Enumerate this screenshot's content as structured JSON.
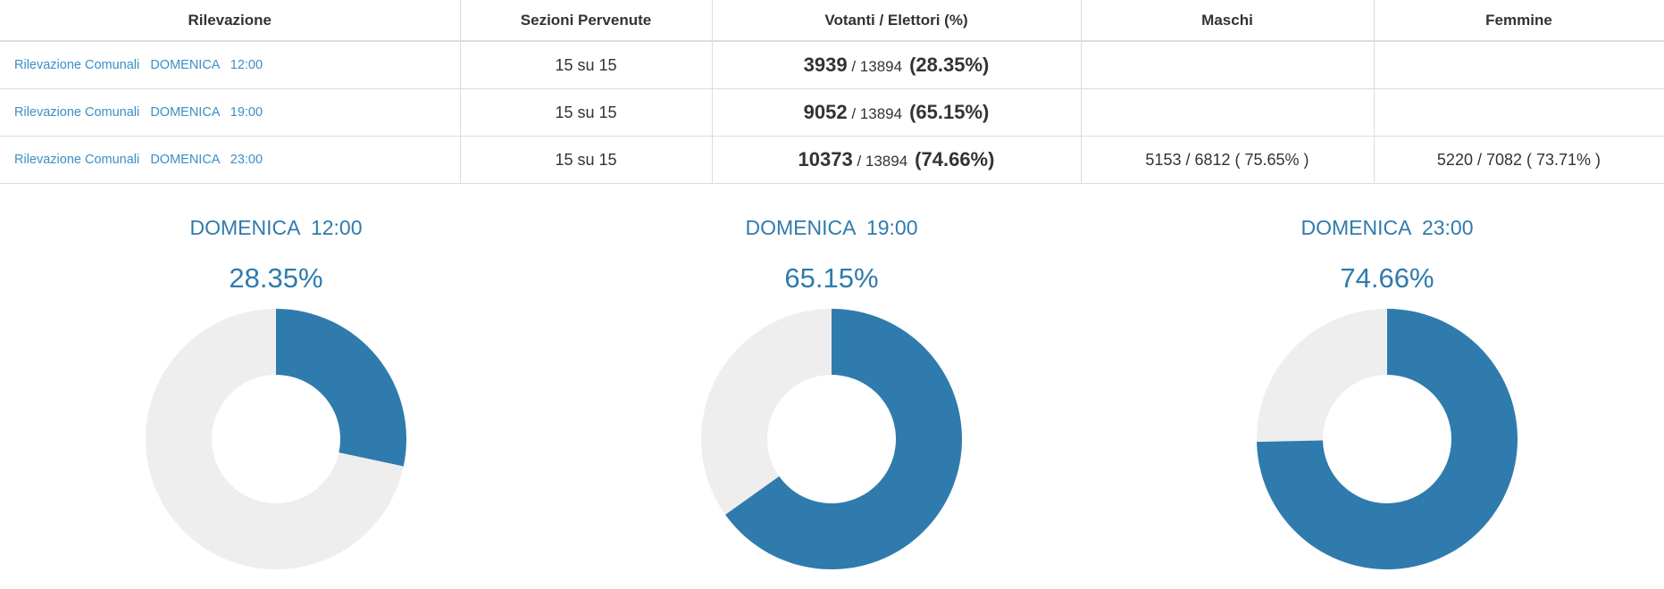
{
  "table": {
    "headers": [
      "Rilevazione",
      "Sezioni Pervenute",
      "Votanti / Elettori (%)",
      "Maschi",
      "Femmine"
    ],
    "rows": [
      {
        "rilevazione": "Rilevazione Comunali   DOMENICA   12:00",
        "sezioni": "15 su 15",
        "votanti": "3939",
        "elettori": " / 13894",
        "percentuale": "(28.35%)",
        "maschi": "",
        "femmine": ""
      },
      {
        "rilevazione": "Rilevazione Comunali   DOMENICA   19:00",
        "sezioni": "15 su 15",
        "votanti": "9052",
        "elettori": " / 13894",
        "percentuale": "(65.15%)",
        "maschi": "",
        "femmine": ""
      },
      {
        "rilevazione": "Rilevazione Comunali   DOMENICA   23:00",
        "sezioni": "15 su 15",
        "votanti": "10373",
        "elettori": " / 13894",
        "percentuale": "(74.66%)",
        "maschi": "5153 / 6812 ( 75.65% )",
        "femmine": "5220 / 7082 ( 73.71% )"
      }
    ]
  },
  "charts": [
    {
      "label": "DOMENICA  12:00",
      "percent_text": "28.35%",
      "value": 28.35
    },
    {
      "label": "DOMENICA  19:00",
      "percent_text": "65.15%",
      "value": 65.15
    },
    {
      "label": "DOMENICA  23:00",
      "percent_text": "74.66%",
      "value": 74.66
    }
  ],
  "colors": {
    "accent": "#2f7bad",
    "remainder": "#eeeeee",
    "link": "#3a8fc7"
  }
}
